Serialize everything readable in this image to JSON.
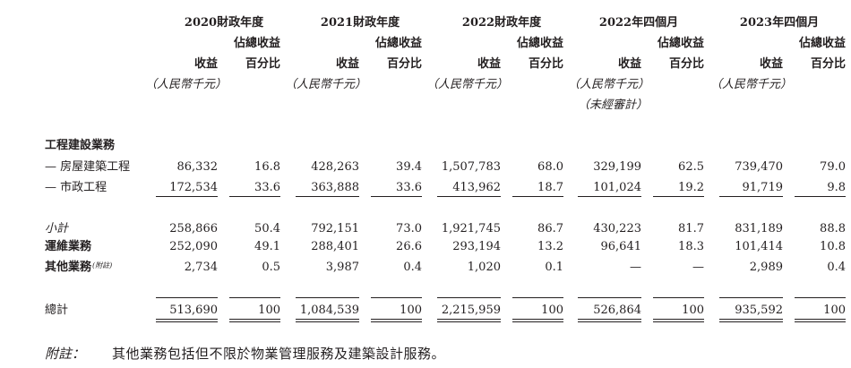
{
  "periods": [
    {
      "title": "2020財政年度",
      "rev": "收益",
      "pct_1": "佔總收益",
      "pct_2": "百分比",
      "unit": "（人民幣千元）",
      "note": ""
    },
    {
      "title": "2021財政年度",
      "rev": "收益",
      "pct_1": "佔總收益",
      "pct_2": "百分比",
      "unit": "（人民幣千元）",
      "note": ""
    },
    {
      "title": "2022財政年度",
      "rev": "收益",
      "pct_1": "佔總收益",
      "pct_2": "百分比",
      "unit": "（人民幣千元）",
      "note": ""
    },
    {
      "title": "2022年四個月",
      "rev": "收益",
      "pct_1": "佔總收益",
      "pct_2": "百分比",
      "unit": "（人民幣千元）",
      "note": "（未經審計）"
    },
    {
      "title": "2023年四個月",
      "rev": "收益",
      "pct_1": "佔總收益",
      "pct_2": "百分比",
      "unit": "（人民幣千元）",
      "note": ""
    }
  ],
  "section_title": "工程建設業務",
  "rows": {
    "building": {
      "label": "— 房屋建築工程",
      "cells": [
        "86,332",
        "16.8",
        "428,263",
        "39.4",
        "1,507,783",
        "68.0",
        "329,199",
        "62.5",
        "739,470",
        "79.0"
      ]
    },
    "municipal": {
      "label": "— 市政工程",
      "cells": [
        "172,534",
        "33.6",
        "363,888",
        "33.6",
        "413,962",
        "18.7",
        "101,024",
        "19.2",
        "91,719",
        "9.8"
      ]
    },
    "subtotal": {
      "label": "小計",
      "cells": [
        "258,866",
        "50.4",
        "792,151",
        "73.0",
        "1,921,745",
        "86.7",
        "430,223",
        "81.7",
        "831,189",
        "88.8"
      ]
    },
    "ops": {
      "label": "運維業務",
      "cells": [
        "252,090",
        "49.1",
        "288,401",
        "26.6",
        "293,194",
        "13.2",
        "96,641",
        "18.3",
        "101,414",
        "10.8"
      ]
    },
    "other": {
      "label": "其他業務",
      "label_note": "(附註)",
      "cells": [
        "2,734",
        "0.5",
        "3,987",
        "0.4",
        "1,020",
        "0.1",
        "—",
        "—",
        "2,989",
        "0.4"
      ]
    },
    "total": {
      "label": "總計",
      "cells": [
        "513,690",
        "100",
        "1,084,539",
        "100",
        "2,215,959",
        "100",
        "526,864",
        "100",
        "935,592",
        "100"
      ]
    }
  },
  "footnote": {
    "label": "附註：",
    "text": "其他業務包括但不限於物業管理服務及建築設計服務。"
  }
}
